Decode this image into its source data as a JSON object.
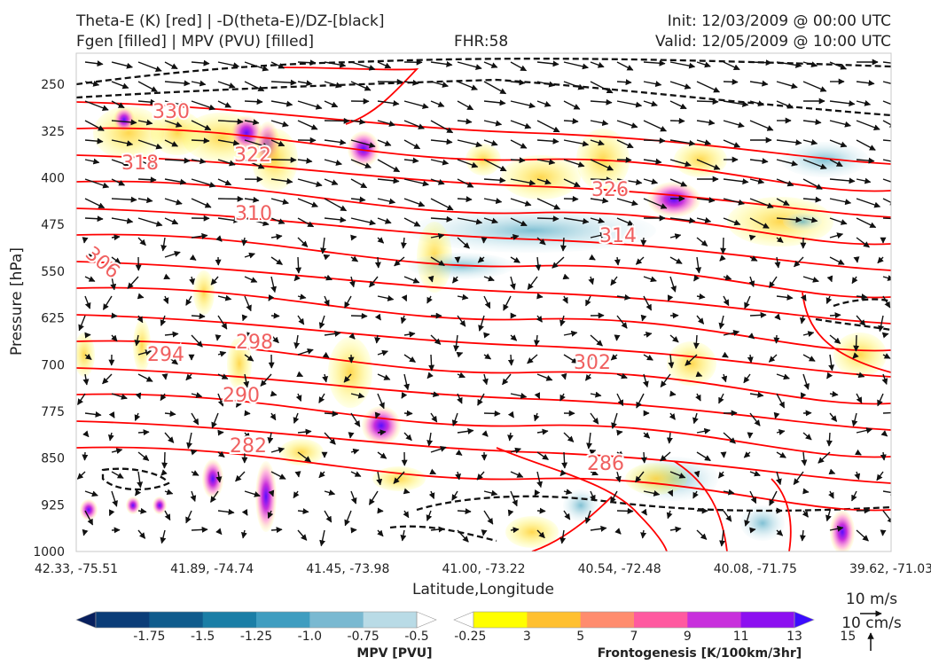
{
  "header": {
    "line1_left": "Theta-E (K) [red] | -D(theta-E)/DZ-[black]",
    "line2_left": "Fgen [filled] | MPV (PVU) [filled]",
    "fhr": "FHR:58",
    "init": "Init: 12/03/2009 @ 00:00 UTC",
    "valid": "Valid: 12/05/2009 @ 10:00 UTC"
  },
  "chart_data": {
    "type": "cross-section",
    "xlabel": "Latitude,Longitude",
    "ylabel": "Pressure [hPa]",
    "x_ticks": [
      "42.33, -75.51",
      "41.89, -74.74",
      "41.45, -73.98",
      "41.00, -73.22",
      "40.54, -72.48",
      "40.08, -71.75",
      "39.62, -71.03"
    ],
    "y_ticks": [
      250,
      325,
      400,
      475,
      550,
      625,
      700,
      775,
      850,
      925,
      1000
    ],
    "ylim": [
      1000,
      200
    ],
    "theta_e_contours": {
      "color": "#ff0000",
      "labels": [
        "330",
        "322",
        "318",
        "326",
        "310",
        "314",
        "306",
        "298",
        "302",
        "294",
        "290",
        "282",
        "286"
      ]
    },
    "mpv_colorbar": {
      "label": "MPV [PVU]",
      "ticks": [
        "-1.75",
        "-1.5",
        "-1.25",
        "-1.0",
        "-0.75",
        "-0.5",
        "-0.25"
      ],
      "colors": [
        "#08205e",
        "#0b3d78",
        "#105b8c",
        "#1a7ea6",
        "#3f9dc0",
        "#7ab9d1",
        "#b9dbe6",
        "#ffffff"
      ]
    },
    "fgen_colorbar": {
      "label": "Frontogenesis [K/100km/3hr]",
      "ticks": [
        "3",
        "5",
        "7",
        "9",
        "11",
        "13",
        "15"
      ],
      "colors": [
        "#ffffff",
        "#ffff00",
        "#ffc030",
        "#ff8c6e",
        "#ff5aa0",
        "#c830dc",
        "#8c10f0",
        "#3c0cff"
      ]
    },
    "wind_reference": {
      "horizontal": "10 m/s",
      "vertical": "10 cm/s"
    }
  }
}
